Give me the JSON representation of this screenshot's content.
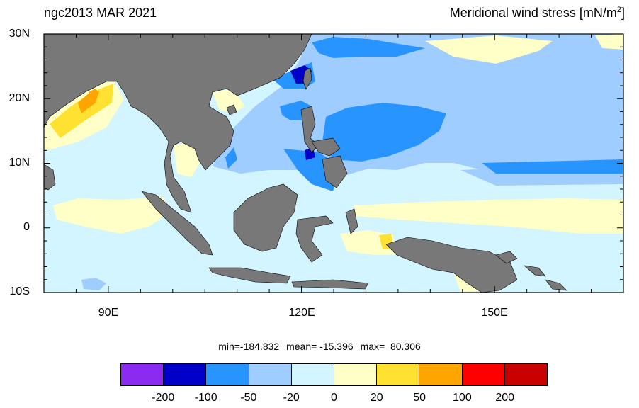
{
  "header": {
    "left_title": "ngc2013 MAR 2021",
    "right_title": "Meridional wind stress [mN/m",
    "right_title_sup": "2",
    "right_title_end": "]"
  },
  "axes": {
    "lat_labels": [
      "30N",
      "20N",
      "10N",
      "0",
      "10S"
    ],
    "lon_labels": [
      "90E",
      "120E",
      "150E"
    ]
  },
  "stats": {
    "min": "min=-184.832",
    "mean": "mean= -15.396",
    "max": "max=  80.306"
  },
  "colorbar": {
    "colors": [
      "#8c2bf0",
      "#0000c8",
      "#2894ff",
      "#a0cdff",
      "#d2f5ff",
      "#ffffc8",
      "#ffe132",
      "#ffa500",
      "#ff0000",
      "#c80000"
    ],
    "labels": [
      "-200",
      "-100",
      "-50",
      "-20",
      "0",
      "20",
      "50",
      "100",
      "200"
    ]
  },
  "map_colors": {
    "land": "#787878",
    "ocean_default": "#d2f5ff"
  },
  "chart_data": {
    "type": "heatmap",
    "title": "ngc2013 MAR 2021",
    "variable": "Meridional wind stress [mN/m2]",
    "lon_range": [
      80,
      170
    ],
    "lat_range": [
      -10,
      30
    ],
    "levels": [
      -200,
      -100,
      -50,
      -20,
      0,
      20,
      50,
      100,
      200
    ],
    "min": -184.832,
    "mean": -15.396,
    "max": 80.306
  }
}
